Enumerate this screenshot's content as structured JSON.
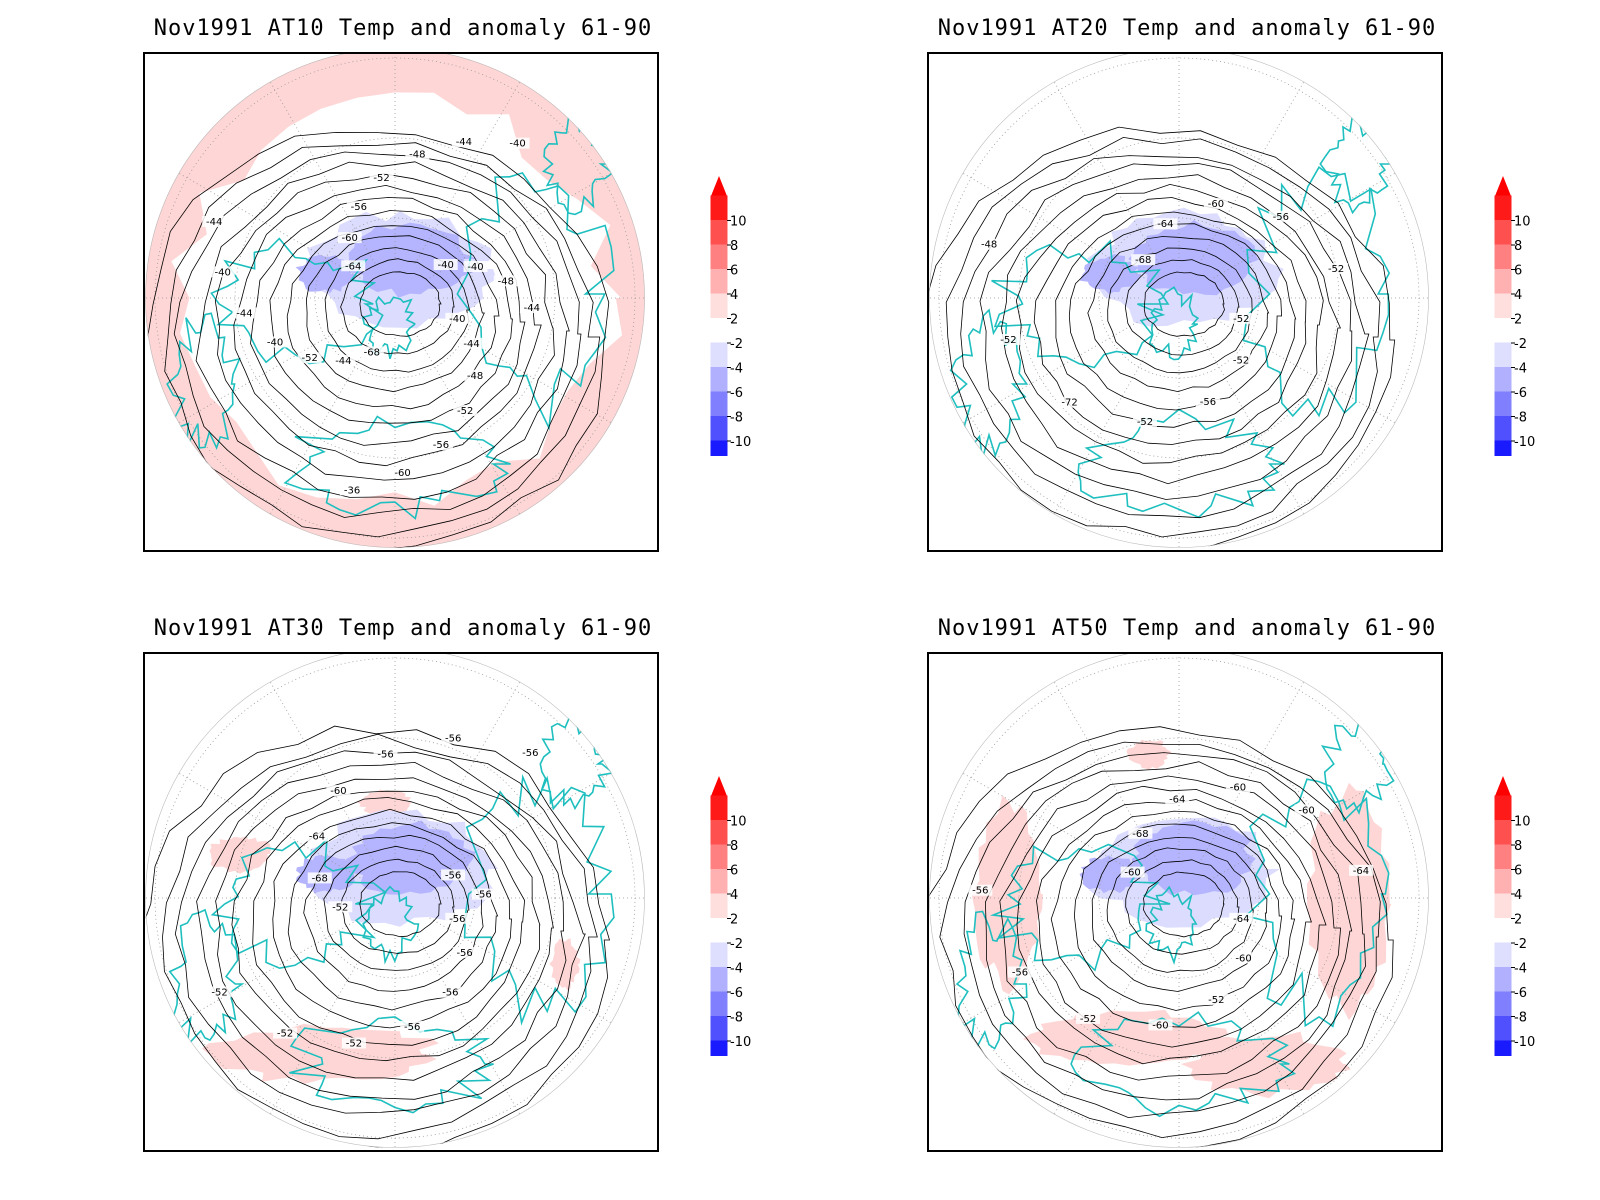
{
  "panels": [
    {
      "title": "Nov1991 AT10 Temp and anomaly 61-90",
      "contour_labels": [
        "-40",
        "-44",
        "-48",
        "-52",
        "-56",
        "-60",
        "-36",
        "-68",
        "-44",
        "-52",
        "-40",
        "-44",
        "-40",
        "-44",
        "-64",
        "-60",
        "-56",
        "-52",
        "-48",
        "-44",
        "-40",
        "-40",
        "-40",
        "-48",
        "-44"
      ],
      "anomaly": "warm-ring",
      "cold_anomaly": true
    },
    {
      "title": "Nov1991 AT20 Temp and anomaly 61-90",
      "contour_labels": [
        "-52",
        "-52",
        "-56",
        "-52",
        "-72",
        "-52",
        "-48",
        "-68",
        "-64",
        "-60",
        "-56",
        "-52"
      ],
      "anomaly": "none",
      "cold_anomaly": true
    },
    {
      "title": "Nov1991 AT30 Temp and anomaly 61-90",
      "contour_labels": [
        "-56",
        "-56",
        "-56",
        "-56",
        "-52",
        "-52",
        "-52",
        "-52",
        "-68",
        "-64",
        "-60",
        "-56",
        "-56",
        "-56",
        "-56",
        "-56"
      ],
      "anomaly": "warm-patches",
      "cold_anomaly": true
    },
    {
      "title": "Nov1991 AT50 Temp and anomaly 61-90",
      "contour_labels": [
        "-64",
        "-60",
        "-52",
        "-60",
        "-52",
        "-56",
        "-56",
        "-60",
        "-68",
        "-64",
        "-60",
        "-60",
        "-64"
      ],
      "anomaly": "warm-arc",
      "cold_anomaly": true
    }
  ],
  "colorbar": {
    "labels": [
      "10",
      "8",
      "6",
      "4",
      "2",
      "-2",
      "-4",
      "-6",
      "-8",
      "-10"
    ],
    "colors": [
      "#ff1a1a",
      "#ff5050",
      "#ff8080",
      "#ffb0b0",
      "#ffdede",
      "#ffffff",
      "#dedeff",
      "#b0b0ff",
      "#8080ff",
      "#5050ff",
      "#1a1aff"
    ],
    "top_arrow_color": "#ff0000",
    "bottom_arrow_color": "#0000ff"
  },
  "colors": {
    "coastline": "#1fbfbf",
    "contour": "#000000",
    "grid": "#999999"
  }
}
